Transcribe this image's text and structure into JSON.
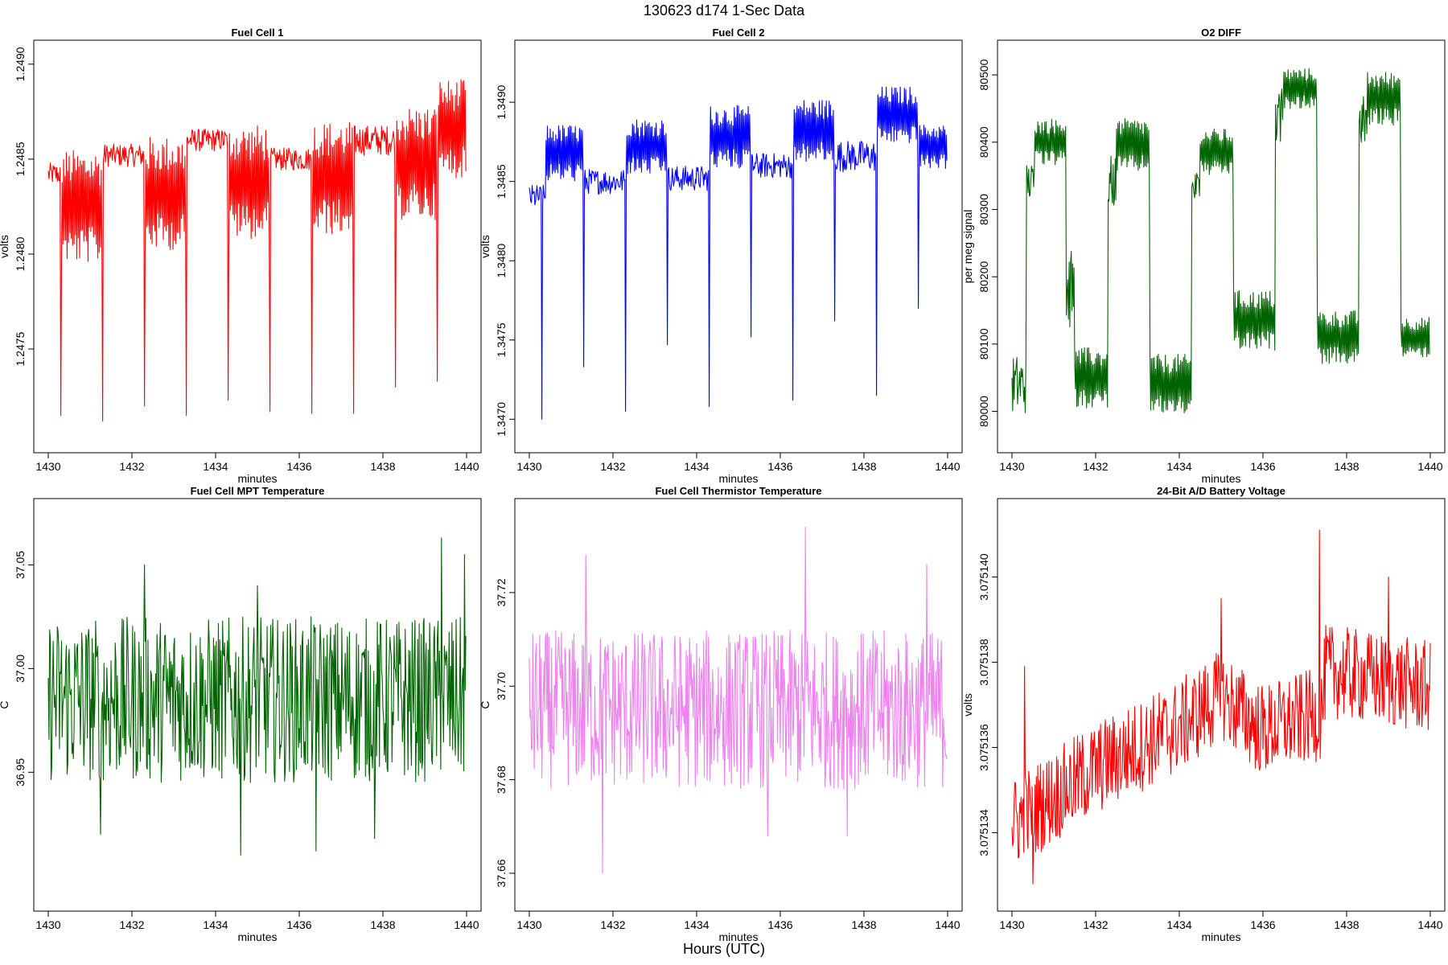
{
  "figure": {
    "title": "130623   d174   1-Sec Data",
    "footer": "Hours (UTC)"
  },
  "chart_data": [
    {
      "type": "line",
      "title": "Fuel Cell 1",
      "xlabel": "minutes",
      "ylabel": "volts",
      "color": "#ff0000",
      "xlim": [
        1430,
        1440
      ],
      "ylim": [
        1.24703,
        1.24905
      ],
      "xticks": [
        "1430",
        "1432",
        "1434",
        "1436",
        "1438",
        "1440"
      ],
      "yticks": [
        1.2475,
        1.248,
        1.2485,
        1.249
      ],
      "ytick_labels": [
        "1.2475",
        "1.2480",
        "1.2485",
        "1.2490"
      ],
      "series": [
        {
          "segments": [
            {
              "x0": 1430.0,
              "x1": 1430.3,
              "base": 1.24842,
              "amp": 6e-05,
              "fn": "noise"
            },
            {
              "x0": 1430.3,
              "x1": 1431.3,
              "base": 1.24825,
              "amp": 0.0003,
              "fn": "osc"
            },
            {
              "x0": 1431.3,
              "x1": 1432.3,
              "base": 1.24852,
              "amp": 6e-05,
              "fn": "noise"
            },
            {
              "x0": 1432.3,
              "x1": 1433.3,
              "base": 1.24832,
              "amp": 0.0003,
              "fn": "osc"
            },
            {
              "x0": 1433.3,
              "x1": 1434.3,
              "base": 1.2486,
              "amp": 6e-05,
              "fn": "noise"
            },
            {
              "x0": 1434.3,
              "x1": 1435.3,
              "base": 1.24838,
              "amp": 0.0003,
              "fn": "osc"
            },
            {
              "x0": 1435.3,
              "x1": 1436.3,
              "base": 1.2485,
              "amp": 6e-05,
              "fn": "noise"
            },
            {
              "x0": 1436.3,
              "x1": 1437.3,
              "base": 1.2484,
              "amp": 0.0003,
              "fn": "osc"
            },
            {
              "x0": 1437.3,
              "x1": 1438.3,
              "base": 1.2486,
              "amp": 8e-05,
              "fn": "noise"
            },
            {
              "x0": 1438.3,
              "x1": 1439.3,
              "base": 1.24848,
              "amp": 0.0003,
              "fn": "osc"
            },
            {
              "x0": 1439.3,
              "x1": 1440.0,
              "base": 1.24866,
              "amp": 0.00026,
              "fn": "osc"
            }
          ],
          "spikes": [
            [
              1430.3,
              1.24715
            ],
            [
              1431.3,
              1.24712
            ],
            [
              1432.3,
              1.2472
            ],
            [
              1433.3,
              1.24715
            ],
            [
              1434.3,
              1.24723
            ],
            [
              1435.3,
              1.24717
            ],
            [
              1436.3,
              1.24716
            ],
            [
              1437.3,
              1.24716
            ],
            [
              1438.3,
              1.2473
            ],
            [
              1439.3,
              1.24733
            ]
          ]
        }
      ]
    },
    {
      "type": "line",
      "title": "Fuel Cell 2",
      "xlabel": "minutes",
      "ylabel": "volts",
      "color": "#0000ff",
      "xlim": [
        1430,
        1440
      ],
      "ylim": [
        1.34688,
        1.3493
      ],
      "xticks": [
        "1430",
        "1432",
        "1434",
        "1436",
        "1438",
        "1440"
      ],
      "yticks": [
        1.347,
        1.3475,
        1.348,
        1.3485,
        1.349
      ],
      "ytick_labels": [
        "1.3470",
        "1.3475",
        "1.3480",
        "1.3485",
        "1.3490"
      ],
      "series": [
        {
          "segments": [
            {
              "x0": 1430.0,
              "x1": 1430.4,
              "base": 1.3484,
              "amp": 8e-05,
              "fn": "noise"
            },
            {
              "x0": 1430.4,
              "x1": 1431.3,
              "base": 1.34868,
              "amp": 0.00018,
              "fn": "osc"
            },
            {
              "x0": 1431.3,
              "x1": 1432.3,
              "base": 1.3485,
              "amp": 8e-05,
              "fn": "noise"
            },
            {
              "x0": 1432.3,
              "x1": 1433.3,
              "base": 1.34872,
              "amp": 0.00018,
              "fn": "osc"
            },
            {
              "x0": 1433.3,
              "x1": 1434.3,
              "base": 1.34852,
              "amp": 8e-05,
              "fn": "noise"
            },
            {
              "x0": 1434.3,
              "x1": 1435.3,
              "base": 1.34878,
              "amp": 0.0002,
              "fn": "osc"
            },
            {
              "x0": 1435.3,
              "x1": 1436.3,
              "base": 1.3486,
              "amp": 8e-05,
              "fn": "noise"
            },
            {
              "x0": 1436.3,
              "x1": 1437.3,
              "base": 1.34882,
              "amp": 0.0002,
              "fn": "osc"
            },
            {
              "x0": 1437.3,
              "x1": 1438.3,
              "base": 1.34866,
              "amp": 0.0001,
              "fn": "noise"
            },
            {
              "x0": 1438.3,
              "x1": 1439.3,
              "base": 1.34892,
              "amp": 0.00018,
              "fn": "osc"
            },
            {
              "x0": 1439.3,
              "x1": 1440.0,
              "base": 1.34872,
              "amp": 0.00014,
              "fn": "osc"
            }
          ],
          "spikes": [
            [
              1430.3,
              1.347
            ],
            [
              1431.3,
              1.34733
            ],
            [
              1432.3,
              1.34705
            ],
            [
              1433.3,
              1.34747
            ],
            [
              1434.3,
              1.34708
            ],
            [
              1435.3,
              1.34752
            ],
            [
              1436.3,
              1.34712
            ],
            [
              1437.3,
              1.34762
            ],
            [
              1438.3,
              1.34715
            ],
            [
              1439.3,
              1.3477
            ]
          ]
        }
      ]
    },
    {
      "type": "line",
      "title": "O2 DIFF",
      "xlabel": "minutes",
      "ylabel": "per meg signal",
      "color": "#006400",
      "xlim": [
        1430,
        1440
      ],
      "ylim": [
        79960,
        80530
      ],
      "xticks": [
        "1430",
        "1432",
        "1434",
        "1436",
        "1438",
        "1440"
      ],
      "yticks": [
        80000,
        80100,
        80200,
        80300,
        80400,
        80500
      ],
      "ytick_labels": [
        "80000",
        "80100",
        "80200",
        "80300",
        "80400",
        "80500"
      ],
      "series": [
        {
          "segments": [
            {
              "x0": 1430.0,
              "x1": 1430.35,
              "base": 80040,
              "amp": 45,
              "fn": "noise"
            },
            {
              "x0": 1430.35,
              "x1": 1430.55,
              "base": 80340,
              "amp": 30,
              "fn": "noise"
            },
            {
              "x0": 1430.55,
              "x1": 1431.3,
              "base": 80400,
              "amp": 35,
              "fn": "osc"
            },
            {
              "x0": 1431.3,
              "x1": 1431.5,
              "base": 80180,
              "amp": 60,
              "fn": "noise"
            },
            {
              "x0": 1431.5,
              "x1": 1432.3,
              "base": 80050,
              "amp": 45,
              "fn": "osc"
            },
            {
              "x0": 1432.3,
              "x1": 1432.5,
              "base": 80340,
              "amp": 40,
              "fn": "noise"
            },
            {
              "x0": 1432.5,
              "x1": 1433.3,
              "base": 80395,
              "amp": 40,
              "fn": "osc"
            },
            {
              "x0": 1433.3,
              "x1": 1434.3,
              "base": 80040,
              "amp": 45,
              "fn": "osc"
            },
            {
              "x0": 1434.3,
              "x1": 1434.5,
              "base": 80330,
              "amp": 30,
              "fn": "noise"
            },
            {
              "x0": 1434.5,
              "x1": 1435.3,
              "base": 80385,
              "amp": 35,
              "fn": "osc"
            },
            {
              "x0": 1435.3,
              "x1": 1436.3,
              "base": 80135,
              "amp": 45,
              "fn": "osc"
            },
            {
              "x0": 1436.3,
              "x1": 1436.5,
              "base": 80440,
              "amp": 40,
              "fn": "noise"
            },
            {
              "x0": 1436.5,
              "x1": 1437.3,
              "base": 80480,
              "amp": 30,
              "fn": "osc"
            },
            {
              "x0": 1437.3,
              "x1": 1438.3,
              "base": 80110,
              "amp": 40,
              "fn": "osc"
            },
            {
              "x0": 1438.3,
              "x1": 1438.5,
              "base": 80430,
              "amp": 40,
              "fn": "noise"
            },
            {
              "x0": 1438.5,
              "x1": 1439.3,
              "base": 80465,
              "amp": 40,
              "fn": "osc"
            },
            {
              "x0": 1439.3,
              "x1": 1440.0,
              "base": 80110,
              "amp": 30,
              "fn": "osc"
            }
          ],
          "spikes": []
        }
      ]
    },
    {
      "type": "line",
      "title": "Fuel Cell MPT Temperature",
      "xlabel": "minutes",
      "ylabel": "C",
      "color": "#006400",
      "xlim": [
        1430,
        1440
      ],
      "ylim": [
        36.89,
        37.075
      ],
      "xticks": [
        "1430",
        "1432",
        "1434",
        "1436",
        "1438",
        "1440"
      ],
      "yticks": [
        36.95,
        37.0,
        37.05
      ],
      "ytick_labels": [
        "36.95",
        "37.00",
        "37.05"
      ],
      "series": [
        {
          "segments": [
            {
              "x0": 1430.0,
              "x1": 1440.0,
              "base": 36.985,
              "amp": 0.04,
              "fn": "noise"
            }
          ],
          "spikes": [
            [
              1431.25,
              36.92
            ],
            [
              1434.6,
              36.91
            ],
            [
              1436.4,
              36.912
            ],
            [
              1437.8,
              36.918
            ],
            [
              1439.4,
              37.063
            ],
            [
              1439.95,
              37.055
            ],
            [
              1432.3,
              37.05
            ],
            [
              1435.0,
              37.04
            ]
          ]
        }
      ]
    },
    {
      "type": "line",
      "title": "Fuel Cell Thermistor Temperature",
      "xlabel": "minutes",
      "ylabel": "C",
      "color": "#ee82ee",
      "xlim": [
        1430,
        1440
      ],
      "ylim": [
        37.655,
        37.737
      ],
      "xticks": [
        "1430",
        "1432",
        "1434",
        "1436",
        "1438",
        "1440"
      ],
      "yticks": [
        37.66,
        37.68,
        37.7,
        37.72
      ],
      "ytick_labels": [
        "37.66",
        "37.68",
        "37.70",
        "37.72"
      ],
      "series": [
        {
          "segments": [
            {
              "x0": 1430.0,
              "x1": 1440.0,
              "base": 37.695,
              "amp": 0.017,
              "fn": "noise"
            }
          ],
          "spikes": [
            [
              1431.75,
              37.66
            ],
            [
              1436.6,
              37.734
            ],
            [
              1431.35,
              37.728
            ],
            [
              1435.7,
              37.668
            ],
            [
              1437.6,
              37.668
            ],
            [
              1439.5,
              37.726
            ]
          ]
        }
      ]
    },
    {
      "type": "line",
      "title": "24-Bit A/D Battery Voltage",
      "xlabel": "minutes",
      "ylabel": "volts",
      "color": "#ff0000",
      "xlim": [
        1430,
        1440
      ],
      "ylim": [
        3.0751325,
        3.0751415
      ],
      "xticks": [
        "1430",
        "1432",
        "1434",
        "1436",
        "1438",
        "1440"
      ],
      "yticks": [
        3.075134,
        3.075136,
        3.075138,
        3.07514
      ],
      "ytick_labels": [
        "3.075134",
        "3.075136",
        "3.075138",
        "3.075140"
      ],
      "series": [
        {
          "trend": [
            [
              1430.0,
              3.0751342
            ],
            [
              1432.0,
              3.0751355
            ],
            [
              1434.0,
              3.0751365
            ],
            [
              1435.0,
              3.0751372
            ],
            [
              1436.0,
              3.0751364
            ],
            [
              1437.4,
              3.0751368
            ],
            [
              1437.5,
              3.0751378
            ],
            [
              1440.0,
              3.0751374
            ]
          ],
          "amp": 1.1e-06,
          "spikes": [
            [
              1430.5,
              3.0751328
            ],
            [
              1437.35,
              3.0751411
            ],
            [
              1435.0,
              3.0751395
            ],
            [
              1439.0,
              3.07514
            ],
            [
              1435.85,
              3.0751357
            ],
            [
              1430.3,
              3.0751379
            ]
          ]
        }
      ]
    }
  ]
}
